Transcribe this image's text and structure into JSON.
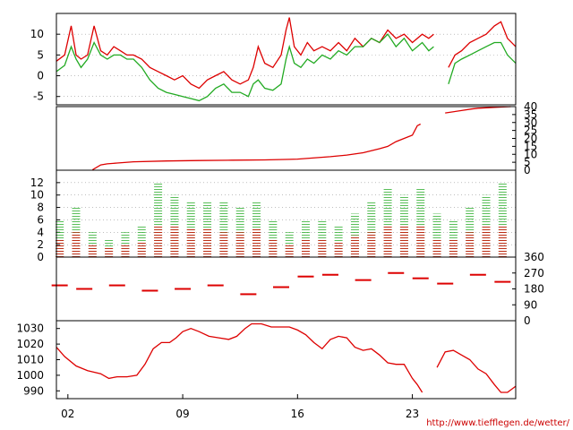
{
  "credit": "http://www.tiefflegen.de/wetter/",
  "colors": {
    "red": "#dd0000",
    "green": "#22aa22",
    "grid": "#999999",
    "frame": "#000000"
  },
  "chart_data": [
    {
      "type": "line",
      "xlabel": "",
      "ylabel": "",
      "x_ticks": [
        "02",
        "09",
        "16",
        "23"
      ],
      "x_tick_days": [
        2,
        9,
        16,
        23
      ],
      "xlim": [
        1.3,
        29.3
      ],
      "ylim": [
        -7,
        15
      ],
      "y_ticks": [
        -5,
        0,
        5,
        10
      ],
      "grid": true,
      "series": [
        {
          "color": "#dd0000",
          "x": [
            1.3,
            1.8,
            2.2,
            2.5,
            2.8,
            3.2,
            3.6,
            4.0,
            4.4,
            4.8,
            5.2,
            5.6,
            6.0,
            6.5,
            7.0,
            7.5,
            8.0,
            8.5,
            9.0,
            9.5,
            10.0,
            10.5,
            11.0,
            11.5,
            12.0,
            12.5,
            13.0,
            13.3,
            13.6,
            14.0,
            14.5,
            15.0,
            15.3,
            15.5,
            15.8,
            16.2,
            16.6,
            17.0,
            17.5,
            18.0,
            18.5,
            19.0,
            19.5,
            20.0,
            20.5,
            21.0,
            21.5,
            22.0,
            22.5,
            23.0,
            23.6,
            24.0,
            24.3,
            24.8,
            25.2,
            25.6,
            26.0,
            26.5,
            27.0,
            27.5,
            28.0,
            28.4,
            28.8,
            29.3
          ],
          "y": [
            3.5,
            5,
            12,
            5,
            4,
            5,
            12,
            6,
            5,
            7,
            6,
            5,
            5,
            4,
            2,
            1,
            0,
            -1,
            0,
            -2,
            -3,
            -1,
            0,
            1,
            -1,
            -2,
            -1,
            2,
            7,
            3,
            2,
            5,
            11,
            14,
            7,
            5,
            8,
            6,
            7,
            6,
            8,
            6,
            9,
            7,
            9,
            8,
            11,
            9,
            10,
            8,
            10,
            9,
            10,
            null,
            2,
            5,
            6,
            8,
            9,
            10,
            12,
            13,
            9,
            7
          ]
        },
        {
          "color": "#22aa22",
          "x": [
            1.3,
            1.8,
            2.2,
            2.5,
            2.8,
            3.2,
            3.6,
            4.0,
            4.4,
            4.8,
            5.2,
            5.6,
            6.0,
            6.5,
            7.0,
            7.5,
            8.0,
            8.5,
            9.0,
            9.5,
            10.0,
            10.5,
            11.0,
            11.5,
            12.0,
            12.5,
            13.0,
            13.3,
            13.6,
            14.0,
            14.5,
            15.0,
            15.3,
            15.5,
            15.8,
            16.2,
            16.6,
            17.0,
            17.5,
            18.0,
            18.5,
            19.0,
            19.5,
            20.0,
            20.5,
            21.0,
            21.5,
            22.0,
            22.5,
            23.0,
            23.6,
            24.0,
            24.3,
            24.8,
            25.2,
            25.6,
            26.0,
            26.5,
            27.0,
            27.5,
            28.0,
            28.4,
            28.8,
            29.3
          ],
          "y": [
            1,
            2.5,
            7,
            4,
            2,
            4,
            8,
            5,
            4,
            5,
            5,
            4,
            4,
            2,
            -1,
            -3,
            -4,
            -4.5,
            -5,
            -5.5,
            -6,
            -5,
            -3,
            -2,
            -4,
            -4,
            -5,
            -2,
            -1,
            -3,
            -3.5,
            -2,
            4,
            7,
            3,
            2,
            4,
            3,
            5,
            4,
            6,
            5,
            7,
            7,
            9,
            8,
            10,
            7,
            9,
            6,
            8,
            6,
            7,
            null,
            -2,
            3,
            4,
            5,
            6,
            7,
            8,
            8,
            5,
            3
          ]
        }
      ]
    },
    {
      "type": "line",
      "xlabel": "",
      "ylabel": "",
      "ylim": [
        0,
        40
      ],
      "y_ticks": [
        0,
        5,
        10,
        15,
        20,
        25,
        30,
        35,
        40
      ],
      "series": [
        {
          "color": "#dd0000",
          "x": [
            3.5,
            4.0,
            4.4,
            5.0,
            6.0,
            8.0,
            10.0,
            12.0,
            14.0,
            15.5,
            16.0,
            18.0,
            19.0,
            20.0,
            21.0,
            21.5,
            22.0,
            22.5,
            23.0,
            23.3,
            23.5,
            24.0,
            25.0,
            26.0,
            26.6,
            27.0,
            28.0,
            29.0
          ],
          "y": [
            0.2,
            3.3,
            4.0,
            4.5,
            5.3,
            5.8,
            6.1,
            6.3,
            6.5,
            6.8,
            7.0,
            8.5,
            9.5,
            11.0,
            13.5,
            15,
            18,
            20,
            22,
            28,
            29,
            null,
            36,
            37.5,
            38.5,
            39,
            39.5,
            40
          ]
        }
      ]
    },
    {
      "type": "scatter",
      "xlabel": "",
      "ylabel": "",
      "ylim": [
        0,
        14
      ],
      "y_ticks": [
        0,
        2,
        4,
        6,
        8,
        10,
        12
      ],
      "grid": true,
      "series": [
        {
          "color": "#22aa22",
          "x": [
            1.5,
            2.5,
            3.5,
            4.5,
            5.5,
            6.5,
            7.5,
            8.5,
            9.5,
            10.5,
            11.5,
            12.5,
            13.5,
            14.5,
            15.5,
            16.5,
            17.5,
            18.5,
            19.5,
            20.5,
            21.5,
            22.5,
            23.5,
            24.5,
            25.5,
            26.5,
            27.5,
            28.5
          ],
          "y": [
            6,
            8,
            4,
            3,
            4,
            5,
            12,
            10,
            9,
            9,
            9,
            8,
            9,
            6,
            4,
            6,
            6,
            5,
            7,
            9,
            11,
            10,
            11,
            7,
            6,
            8,
            10,
            12
          ]
        },
        {
          "color": "#dd0000",
          "x": [
            1.5,
            2.5,
            3.5,
            4.5,
            5.5,
            6.5,
            7.5,
            8.5,
            9.5,
            10.5,
            11.5,
            12.5,
            13.5,
            14.5,
            15.5,
            16.5,
            17.5,
            18.5,
            19.5,
            20.5,
            21.5,
            22.5,
            23.5,
            24.5,
            25.5,
            26.5,
            27.5,
            28.5
          ],
          "y": [
            3,
            4,
            2,
            1.5,
            2,
            2.5,
            5,
            5,
            4.5,
            4.5,
            4,
            4,
            4.5,
            3,
            2,
            3,
            3,
            2.5,
            3.5,
            4,
            5,
            5,
            5,
            3,
            3,
            4,
            5,
            5
          ]
        }
      ]
    },
    {
      "type": "scatter",
      "xlabel": "",
      "ylabel": "",
      "ylim": [
        0,
        360
      ],
      "y_ticks": [
        0,
        90,
        180,
        270,
        360
      ],
      "series": [
        {
          "color": "#dd0000",
          "x": [
            1.5,
            3,
            5,
            7,
            9,
            11,
            13,
            15,
            16.5,
            18,
            20,
            22,
            23.5,
            25,
            27,
            28.5
          ],
          "y": [
            200,
            180,
            200,
            170,
            180,
            200,
            150,
            190,
            250,
            260,
            230,
            270,
            240,
            210,
            260,
            220
          ]
        }
      ]
    },
    {
      "type": "line",
      "xlabel": "",
      "ylabel": "",
      "ylim": [
        985,
        1035
      ],
      "y_ticks": [
        990,
        1000,
        1010,
        1020,
        1030
      ],
      "series": [
        {
          "color": "#dd0000",
          "x": [
            1.3,
            1.8,
            2.5,
            3.2,
            4.0,
            4.5,
            5.0,
            5.6,
            6.2,
            6.7,
            7.2,
            7.7,
            8.2,
            8.6,
            9.0,
            9.5,
            10.0,
            10.6,
            11.2,
            11.8,
            12.3,
            12.8,
            13.2,
            13.8,
            14.4,
            15.0,
            15.5,
            16.0,
            16.5,
            17.0,
            17.5,
            18.0,
            18.5,
            19.0,
            19.5,
            20.0,
            20.5,
            21.0,
            21.5,
            22.0,
            22.5,
            23.0,
            23.3,
            23.6,
            24.0,
            24.5,
            25.0,
            25.5,
            26.0,
            26.5,
            27.0,
            27.5,
            28.0,
            28.4,
            28.8,
            29.3
          ],
          "y": [
            1018,
            1012,
            1006,
            1003,
            1001,
            998,
            999,
            999,
            1000,
            1007,
            1017,
            1021,
            1021,
            1024,
            1028,
            1030,
            1028,
            1025,
            1024,
            1023,
            1025,
            1030,
            1033,
            1033,
            1031,
            1031,
            1031,
            1029,
            1026,
            1021,
            1017,
            1023,
            1025,
            1024,
            1018,
            1016,
            1017,
            1013,
            1008,
            1007,
            1007,
            998,
            994,
            989,
            null,
            1005,
            1015,
            1016,
            1013,
            1010,
            1004,
            1001,
            994,
            989,
            989,
            993
          ]
        }
      ]
    }
  ]
}
